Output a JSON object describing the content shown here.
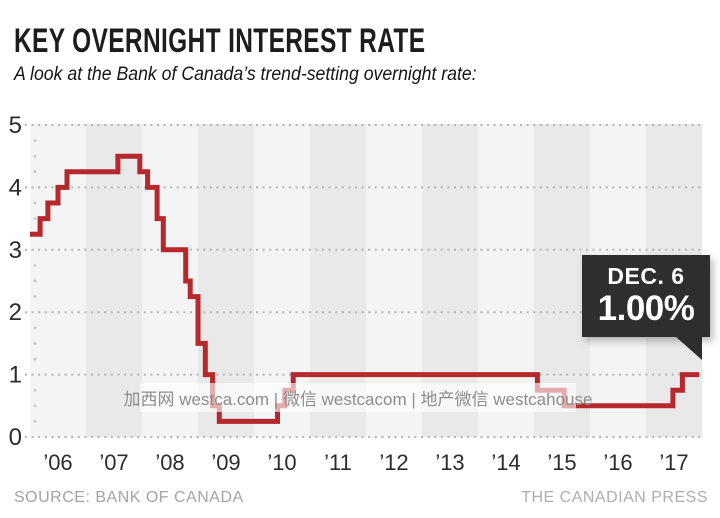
{
  "header": {
    "title": "KEY OVERNIGHT INTEREST RATE",
    "subtitle": "A look at the Bank of Canada’s trend-setting overnight rate:"
  },
  "chart_data": {
    "type": "line",
    "subtype": "step",
    "title": "KEY OVERNIGHT INTEREST RATE",
    "xlabel": "",
    "ylabel": "",
    "ylim": [
      0,
      5
    ],
    "y_ticks": [
      5,
      4,
      3,
      2,
      1,
      0
    ],
    "x_ticks": [
      "’06",
      "’07",
      "’08",
      "’09",
      "’10",
      "’11",
      "’12",
      "’13",
      "’14",
      "’15",
      "’16",
      "’17"
    ],
    "x_range_years": [
      2006,
      2018
    ],
    "grid": "dotted horizontal lines at integer values",
    "legend": "none",
    "line_color": "#b5282c",
    "stripe_colors": [
      "#f4f4f4",
      "#e9e9e9"
    ],
    "grid_dot_color": "#b4b4b4",
    "minor_tick_color": "#c8c8c8",
    "series": [
      {
        "name": "Bank of Canada key overnight interest rate (%)",
        "points": [
          [
            2006.0,
            3.25
          ],
          [
            2006.18,
            3.5
          ],
          [
            2006.32,
            3.75
          ],
          [
            2006.5,
            4.0
          ],
          [
            2006.66,
            4.25
          ],
          [
            2007.57,
            4.5
          ],
          [
            2007.96,
            4.25
          ],
          [
            2008.1,
            4.0
          ],
          [
            2008.27,
            3.5
          ],
          [
            2008.38,
            3.0
          ],
          [
            2008.78,
            2.5
          ],
          [
            2008.86,
            2.25
          ],
          [
            2009.0,
            1.5
          ],
          [
            2009.13,
            1.0
          ],
          [
            2009.26,
            0.5
          ],
          [
            2009.38,
            0.25
          ],
          [
            2010.42,
            0.5
          ],
          [
            2010.55,
            0.75
          ],
          [
            2010.7,
            1.0
          ],
          [
            2015.06,
            0.75
          ],
          [
            2015.54,
            0.5
          ],
          [
            2017.48,
            0.75
          ],
          [
            2017.65,
            1.0
          ],
          [
            2017.95,
            1.0
          ]
        ]
      }
    ],
    "annotation": {
      "label": "DEC. 6",
      "value": "1.00%",
      "points_to": [
        2017.95,
        1.0
      ]
    }
  },
  "callout": {
    "date": "DEC. 6",
    "rate": "1.00%",
    "bg_color": "#2e2e2e"
  },
  "watermark": {
    "text": "加西网 westca.com | 微信 westcacom | 地产微信 westcahouse"
  },
  "footer": {
    "source": "SOURCE: BANK OF CANADA",
    "credit": "THE CANADIAN PRESS"
  }
}
